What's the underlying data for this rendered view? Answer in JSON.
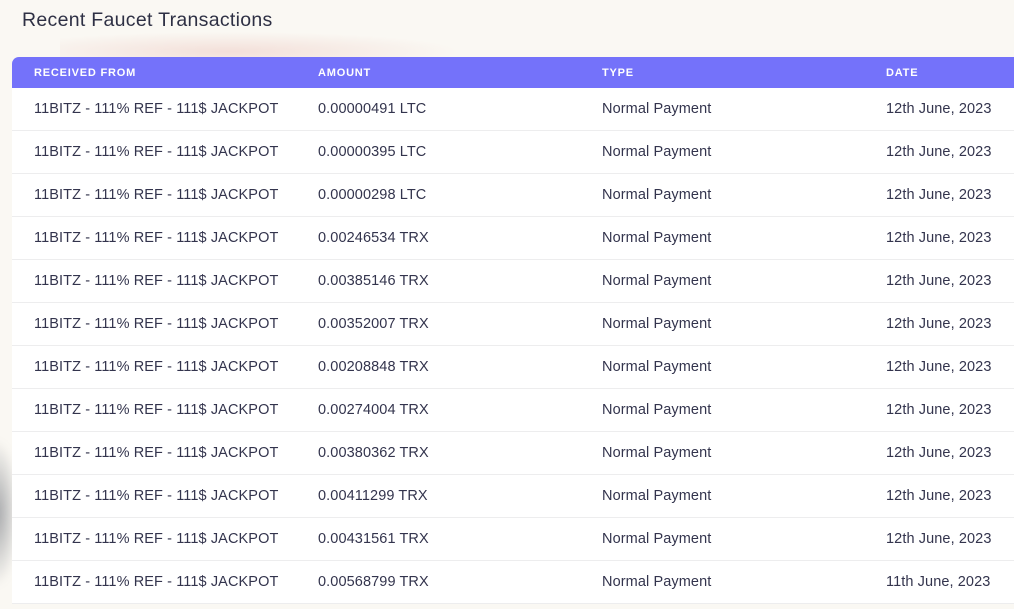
{
  "title": "Recent Faucet Transactions",
  "table": {
    "columns": [
      "Received From",
      "Amount",
      "Type",
      "Date"
    ],
    "rows": [
      {
        "received_from": "11BITZ - 111% REF - 111$ JACKPOT",
        "amount": "0.00000491 LTC",
        "type": "Normal Payment",
        "date": "12th June, 2023"
      },
      {
        "received_from": "11BITZ - 111% REF - 111$ JACKPOT",
        "amount": "0.00000395 LTC",
        "type": "Normal Payment",
        "date": "12th June, 2023"
      },
      {
        "received_from": "11BITZ - 111% REF - 111$ JACKPOT",
        "amount": "0.00000298 LTC",
        "type": "Normal Payment",
        "date": "12th June, 2023"
      },
      {
        "received_from": "11BITZ - 111% REF - 111$ JACKPOT",
        "amount": "0.00246534 TRX",
        "type": "Normal Payment",
        "date": "12th June, 2023"
      },
      {
        "received_from": "11BITZ - 111% REF - 111$ JACKPOT",
        "amount": "0.00385146 TRX",
        "type": "Normal Payment",
        "date": "12th June, 2023"
      },
      {
        "received_from": "11BITZ - 111% REF - 111$ JACKPOT",
        "amount": "0.00352007 TRX",
        "type": "Normal Payment",
        "date": "12th June, 2023"
      },
      {
        "received_from": "11BITZ - 111% REF - 111$ JACKPOT",
        "amount": "0.00208848 TRX",
        "type": "Normal Payment",
        "date": "12th June, 2023"
      },
      {
        "received_from": "11BITZ - 111% REF - 111$ JACKPOT",
        "amount": "0.00274004 TRX",
        "type": "Normal Payment",
        "date": "12th June, 2023"
      },
      {
        "received_from": "11BITZ - 111% REF - 111$ JACKPOT",
        "amount": "0.00380362 TRX",
        "type": "Normal Payment",
        "date": "12th June, 2023"
      },
      {
        "received_from": "11BITZ - 111% REF - 111$ JACKPOT",
        "amount": "0.00411299 TRX",
        "type": "Normal Payment",
        "date": "12th June, 2023"
      },
      {
        "received_from": "11BITZ - 111% REF - 111$ JACKPOT",
        "amount": "0.00431561 TRX",
        "type": "Normal Payment",
        "date": "12th June, 2023"
      },
      {
        "received_from": "11BITZ - 111% REF - 111$ JACKPOT",
        "amount": "0.00568799 TRX",
        "type": "Normal Payment",
        "date": "11th June, 2023"
      }
    ]
  },
  "colors": {
    "header_bg": "#7472fa",
    "header_text": "#ffffff",
    "body_text": "#33344d",
    "page_bg": "#faf8f3",
    "divider": "#ededee"
  }
}
